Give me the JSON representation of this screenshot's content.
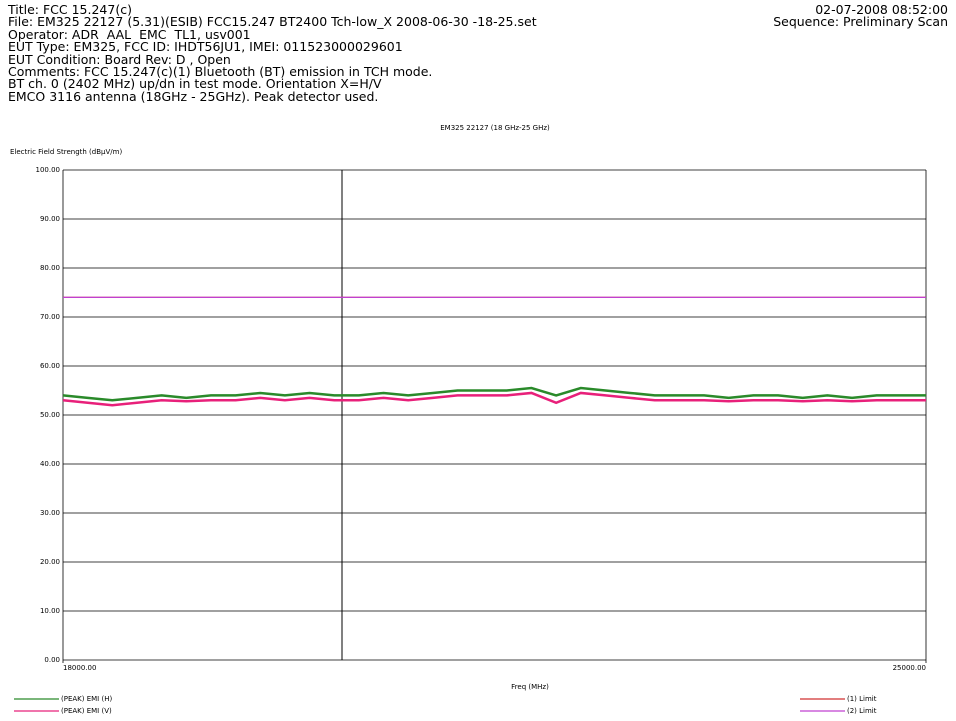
{
  "header": {
    "lines": [
      "Title: FCC 15.247(c)",
      "File: EM325 22127 (5.31)(ESIB) FCC15.247 BT2400 Tch-low_X 2008-06-30 -18-25.set",
      "Operator: ADR  AAL  EMC  TL1, usv001",
      "EUT Type: EM325, FCC ID: IHDT56JU1, IMEI: 011523000029601",
      "EUT Condition: Board Rev: D , Open",
      "Comments: FCC 15.247(c)(1) Bluetooth (BT) emission in TCH mode.",
      "BT ch. 0 (2402 MHz) up/dn in test mode. Orientation X=H/V",
      "EMCO 3116 antenna (18GHz - 25GHz). Peak detector used."
    ],
    "date": "02-07-2008 08:52:00",
    "sequence": "Sequence: Preliminary Scan"
  },
  "chart_data": {
    "type": "line",
    "title": "EM325 22127 (18 GHz-25 GHz)",
    "y_label": "Electric Field Strength (dBµV/m)",
    "x_label": "Freq (MHz)",
    "x": [
      18000,
      18200,
      18400,
      18600,
      18800,
      19000,
      19200,
      19400,
      19600,
      19800,
      20000,
      20200,
      20400,
      20600,
      20800,
      21000,
      21200,
      21400,
      21600,
      21800,
      22000,
      22200,
      22400,
      22600,
      22800,
      23000,
      23200,
      23400,
      23600,
      23800,
      24000,
      24200,
      24400,
      24600,
      24800,
      25000
    ],
    "xlim": [
      18000,
      25000
    ],
    "xticks": [
      {
        "value": 18000,
        "label": "18000.00"
      },
      {
        "value": 25000,
        "label": "25000.00"
      }
    ],
    "ylim": [
      0,
      100
    ],
    "yticks": [
      {
        "value": 0,
        "label": "0.00"
      },
      {
        "value": 10,
        "label": "10.00"
      },
      {
        "value": 20,
        "label": "20.00"
      },
      {
        "value": 30,
        "label": "30.00"
      },
      {
        "value": 40,
        "label": "40.00"
      },
      {
        "value": 50,
        "label": "50.00"
      },
      {
        "value": 60,
        "label": "60.00"
      },
      {
        "value": 70,
        "label": "70.00"
      },
      {
        "value": 80,
        "label": "80.00"
      },
      {
        "value": 90,
        "label": "90.00"
      },
      {
        "value": 100,
        "label": "100.00"
      }
    ],
    "grid": true,
    "series": [
      {
        "name": "(1) Limit",
        "color": "#d03030",
        "values": [
          74,
          74,
          74,
          74,
          74,
          74,
          74,
          74,
          74,
          74,
          74,
          74,
          74,
          74,
          74,
          74,
          74,
          74,
          74,
          74,
          74,
          74,
          74,
          74,
          74,
          74,
          74,
          74,
          74,
          74,
          74,
          74,
          74,
          74,
          74,
          74
        ]
      },
      {
        "name": "(2) Limit",
        "color": "#c040d0",
        "values": [
          74,
          74,
          74,
          74,
          74,
          74,
          74,
          74,
          74,
          74,
          74,
          74,
          74,
          74,
          74,
          74,
          74,
          74,
          74,
          74,
          74,
          74,
          74,
          74,
          74,
          74,
          74,
          74,
          74,
          74,
          74,
          74,
          74,
          74,
          74,
          74
        ]
      },
      {
        "name": "(PEAK) EMI (H)",
        "color": "#2a8a2a",
        "values": [
          54,
          53.5,
          53,
          53.5,
          54,
          53.5,
          54,
          54,
          54.5,
          54,
          54.5,
          54,
          54,
          54.5,
          54,
          54.5,
          55,
          55,
          55,
          55.5,
          54,
          55.5,
          55,
          54.5,
          54,
          54,
          54,
          53.5,
          54,
          54,
          53.5,
          54,
          53.5,
          54,
          54,
          54
        ]
      },
      {
        "name": "(PEAK) EMI (V)",
        "color": "#e8207a",
        "values": [
          53,
          52.5,
          52,
          52.5,
          53,
          52.8,
          53,
          53,
          53.5,
          53,
          53.5,
          53,
          53,
          53.5,
          53,
          53.5,
          54,
          54,
          54,
          54.5,
          52.5,
          54.5,
          54,
          53.5,
          53,
          53,
          53,
          52.8,
          53,
          53,
          52.8,
          53,
          52.8,
          53,
          53,
          53
        ]
      }
    ]
  }
}
